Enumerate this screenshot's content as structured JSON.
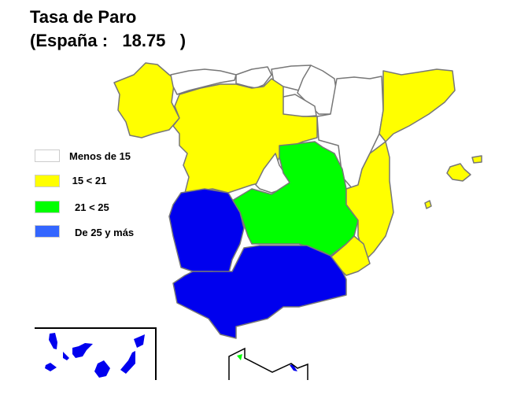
{
  "title": "Tasa de Paro",
  "subtitle": "(España :   18.75   )",
  "legend": [
    {
      "label": "Menos de 15",
      "color": "#ffffff"
    },
    {
      "label": " 15 < 21",
      "color": "#ffff00"
    },
    {
      "label": "21 < 25",
      "color": "#00ff00"
    },
    {
      "label": "De 25 y más",
      "color": "#3366ff"
    }
  ],
  "map_fill_colors": [
    "#ffffff",
    "#ffff00",
    "#00ff00",
    "#0000ee"
  ],
  "region_category": {
    "galicia": 1,
    "asturias": 0,
    "cantabria": 0,
    "pais-vasco": 0,
    "navarra": 0,
    "la-rioja": 0,
    "aragon": 0,
    "cataluna": 1,
    "castilla-y-leon": 1,
    "madrid": 0,
    "castilla-la-mancha": 2,
    "extremadura": 3,
    "comunidad-valenciana": 1,
    "murcia": 1,
    "andalucia": 3,
    "baleares": 1,
    "canarias": 3,
    "ceuta": 2,
    "melilla": 3
  }
}
